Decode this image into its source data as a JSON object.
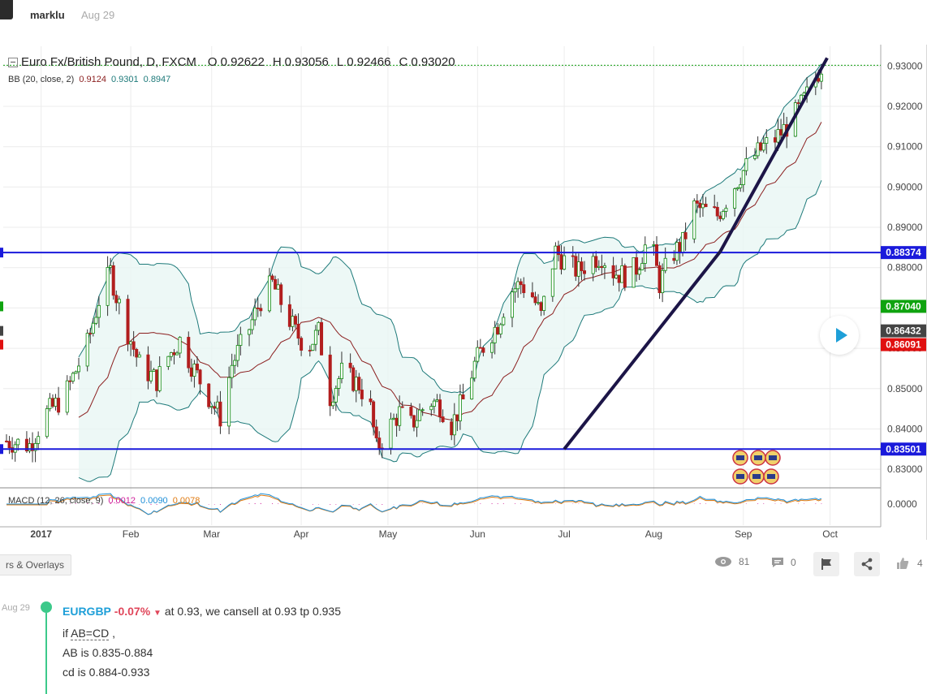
{
  "post": {
    "author": "marklu",
    "date": "Aug 29"
  },
  "chart_data": {
    "type": "candlestick",
    "title": "Euro Fx/British Pound, D, FXCM",
    "ohlc": {
      "o_label": "O",
      "open": "0.92622",
      "h_label": "H",
      "high": "0.93056",
      "l_label": "L",
      "low": "0.92466",
      "c_label": "C",
      "close": "0.93020"
    },
    "bb": {
      "label": "BB (20, close, 2)",
      "basis": "0.9124",
      "upper": "0.9301",
      "lower": "0.8947"
    },
    "macd": {
      "label": "MACD (12, 26, close, 9)",
      "hist": "0.0012",
      "macd": "0.0090",
      "signal": "0.0078"
    },
    "x_ticks": [
      "2017",
      "Feb",
      "Mar",
      "Apr",
      "May",
      "Jun",
      "Jul",
      "Aug",
      "Sep",
      "Oct"
    ],
    "y_ticks": [
      "0.93000",
      "0.92000",
      "0.91000",
      "0.90000",
      "0.89000",
      "0.88000",
      "0.87000",
      "0.86000",
      "0.85000",
      "0.84000",
      "0.83000"
    ],
    "macd_tick": "0.0000",
    "ylim": [
      0.826,
      0.934
    ],
    "price_badges": [
      {
        "value": "0.88374",
        "y": 0.88374,
        "color": "#1a1adb"
      },
      {
        "value": "0.87040",
        "y": 0.8704,
        "color": "#0fa30f"
      },
      {
        "value": "0.86432",
        "y": 0.86432,
        "color": "#444444"
      },
      {
        "value": "0.86091",
        "y": 0.86091,
        "color": "#e01010"
      },
      {
        "value": "0.83501",
        "y": 0.83501,
        "color": "#1a1adb"
      }
    ],
    "horizontal_levels": [
      0.88374,
      0.83501
    ],
    "trend_lines": [
      {
        "x1": "Jul 1",
        "y1": 0.835,
        "x2": "Aug 24",
        "y2": 0.884
      },
      {
        "x1": "Aug 24",
        "y1": 0.884,
        "x2": "Sep 30",
        "y2": 0.932
      }
    ],
    "colors": {
      "up": "#0f8a0f",
      "down": "#b21e1e",
      "bb_band": "#1e7a7a",
      "bb_basis": "#8b1e1e",
      "level": "#1a1adb",
      "trend": "#1c1547"
    }
  },
  "toolbar": {
    "indicators_tab": "rs & Overlays",
    "views": "81",
    "comments": "0"
  },
  "comment": {
    "date": "Aug 29",
    "symbol": "EURGBP",
    "change": "-0.07%",
    "text": " at 0.93, we cansell at 0.93 tp 0.935",
    "line2a": "if ",
    "line2b": "AB=CD",
    "line2c": " ,",
    "line3": "AB is 0.835-0.884",
    "line4": "cd is 0.884-0.933"
  }
}
